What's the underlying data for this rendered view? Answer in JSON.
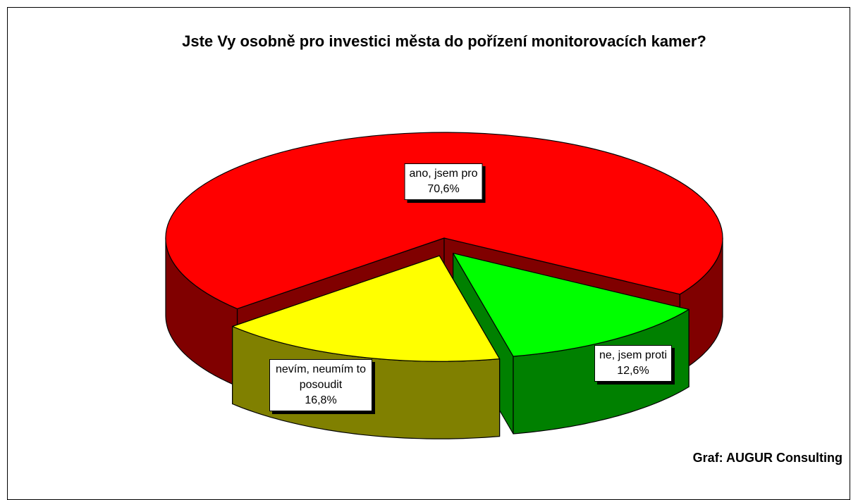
{
  "chart_data": {
    "type": "pie",
    "title": "Jste Vy osobně pro investici města do pořízení monitorovacích kamer?",
    "categories": [
      "ano, jsem pro",
      "ne, jsem proti",
      "nevím, neumím to posoudit"
    ],
    "values": [
      70.6,
      12.6,
      16.8
    ],
    "value_labels": [
      "70,6%",
      "12,6%",
      "16,8%"
    ],
    "colors": [
      "#ff0000",
      "#00ff00",
      "#ffff00"
    ],
    "side_colors": [
      "#800000",
      "#008000",
      "#808000"
    ],
    "source": "Graf: AUGUR Consulting"
  }
}
